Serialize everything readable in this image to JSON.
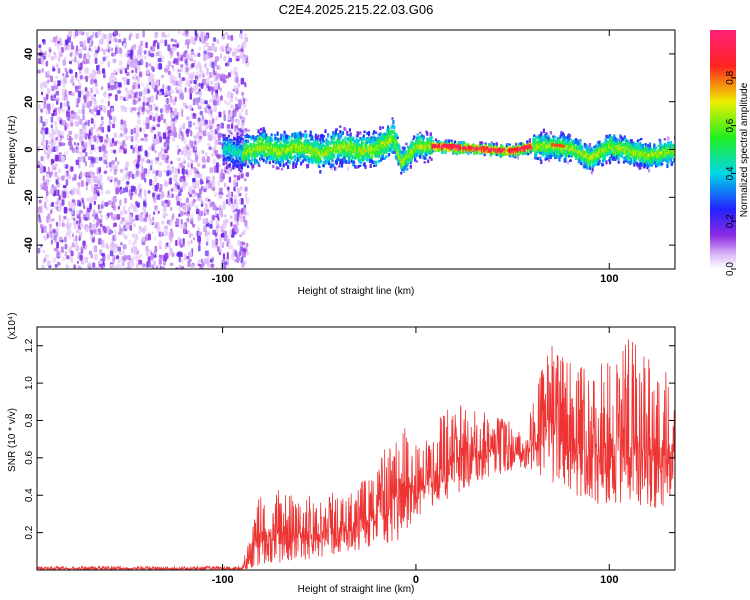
{
  "title": "C2E4.2025.215.22.03.G06",
  "chart_data": [
    {
      "type": "heatmap",
      "xlabel": "Height of straight line (km)",
      "ylabel": "Frequency (Hz)",
      "xlim": [
        -196,
        134
      ],
      "ylim": [
        -50,
        50
      ],
      "xticks": [
        -100,
        100
      ],
      "yticks": [
        -40,
        -20,
        0,
        20,
        40
      ],
      "grid": false,
      "colorbar": {
        "label": "Normalized spectral amplitude",
        "range": [
          0,
          1
        ],
        "ticks": [
          0.0,
          0.2,
          0.4,
          0.6,
          0.8
        ]
      },
      "noise_region": {
        "x_start": -196,
        "x_end": -92
      },
      "signal_center": [
        {
          "x": -100,
          "y": 1
        },
        {
          "x": -90,
          "y": -1
        },
        {
          "x": -80,
          "y": 2
        },
        {
          "x": -70,
          "y": 0
        },
        {
          "x": -60,
          "y": 2
        },
        {
          "x": -50,
          "y": -1
        },
        {
          "x": -40,
          "y": 2
        },
        {
          "x": -30,
          "y": 0
        },
        {
          "x": -20,
          "y": 1
        },
        {
          "x": -12,
          "y": 6
        },
        {
          "x": -8,
          "y": -5
        },
        {
          "x": 0,
          "y": 2
        },
        {
          "x": 10,
          "y": 2
        },
        {
          "x": 30,
          "y": 1
        },
        {
          "x": 50,
          "y": 0
        },
        {
          "x": 60,
          "y": 2
        },
        {
          "x": 70,
          "y": 2
        },
        {
          "x": 80,
          "y": 1
        },
        {
          "x": 90,
          "y": -3
        },
        {
          "x": 100,
          "y": 2
        },
        {
          "x": 110,
          "y": 0
        },
        {
          "x": 120,
          "y": -2
        },
        {
          "x": 134,
          "y": 0
        }
      ]
    },
    {
      "type": "line",
      "xlabel": "Height of straight line (km)",
      "ylabel": "SNR (10 * v/v)",
      "y_multiplier": "(x10⁴)",
      "xlim": [
        -196,
        134
      ],
      "ylim": [
        0,
        1.3
      ],
      "xticks": [
        -100,
        0,
        100
      ],
      "yticks": [
        0.2,
        0.4,
        0.6,
        0.8,
        1.0,
        1.2
      ],
      "grid": false,
      "series": [
        {
          "color": "#ee3333",
          "envelope": [
            {
              "x": -196,
              "low": 0.0,
              "high": 0.02
            },
            {
              "x": -90,
              "low": 0.0,
              "high": 0.02
            },
            {
              "x": -80,
              "low": 0.02,
              "high": 0.45
            },
            {
              "x": -60,
              "low": 0.05,
              "high": 0.4
            },
            {
              "x": -40,
              "low": 0.08,
              "high": 0.42
            },
            {
              "x": -20,
              "low": 0.12,
              "high": 0.55
            },
            {
              "x": -8,
              "low": 0.15,
              "high": 0.85
            },
            {
              "x": 0,
              "low": 0.25,
              "high": 0.7
            },
            {
              "x": 20,
              "low": 0.4,
              "high": 0.9
            },
            {
              "x": 40,
              "low": 0.5,
              "high": 0.85
            },
            {
              "x": 55,
              "low": 0.55,
              "high": 0.75
            },
            {
              "x": 70,
              "low": 0.45,
              "high": 1.25
            },
            {
              "x": 90,
              "low": 0.35,
              "high": 1.05
            },
            {
              "x": 110,
              "low": 0.35,
              "high": 1.25
            },
            {
              "x": 125,
              "low": 0.3,
              "high": 1.1
            },
            {
              "x": 134,
              "low": 0.4,
              "high": 1.05
            }
          ]
        }
      ]
    }
  ]
}
